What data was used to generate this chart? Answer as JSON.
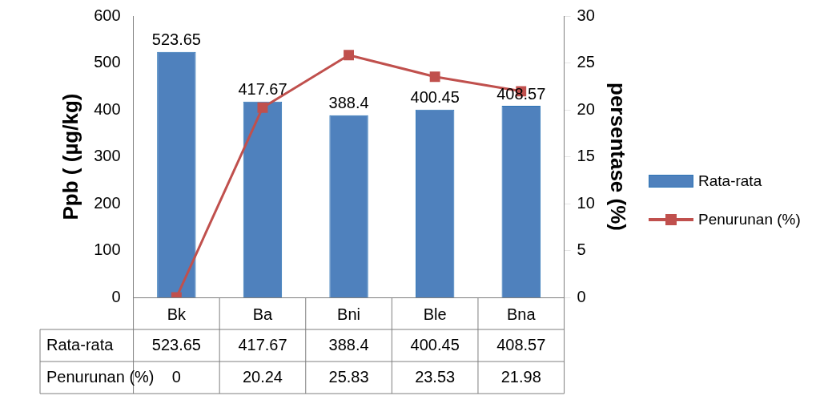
{
  "chart_data": {
    "type": "bar",
    "ylabel": "Ppb ( (µg/kg)",
    "y2label": "persentase (%)",
    "categories": [
      "Bk",
      "Ba",
      "Bni",
      "Ble",
      "Bna"
    ],
    "series": [
      {
        "name": "Rata-rata",
        "color": "#4f81bd",
        "values": [
          523.65,
          417.67,
          388.4,
          400.45,
          408.57
        ]
      },
      {
        "name": "Penurunan (%)",
        "type": "line",
        "axis": "y2",
        "color": "#c0504d",
        "values": [
          0,
          20.24,
          25.83,
          23.53,
          21.98
        ]
      }
    ],
    "ylim": [
      0,
      600
    ],
    "yticks": [
      0,
      100,
      200,
      300,
      400,
      500,
      600
    ],
    "y2lim": [
      0,
      30
    ],
    "y2ticks": [
      0,
      5,
      10,
      15,
      20,
      25,
      30
    ],
    "annotations": [
      {
        "text": "523.65",
        "x": "Bk",
        "y": 523.65
      },
      {
        "text": "417.67",
        "x": "Ba",
        "y": 417.67
      },
      {
        "text": "388.4",
        "x": "Bni",
        "y": 388.4
      },
      {
        "text": "400.45",
        "x": "Ble",
        "y": 400.45
      },
      {
        "text": "408.57",
        "x": "Bna",
        "y": 408.57
      }
    ],
    "data_labels": true,
    "legend": "right",
    "marker": "square"
  }
}
